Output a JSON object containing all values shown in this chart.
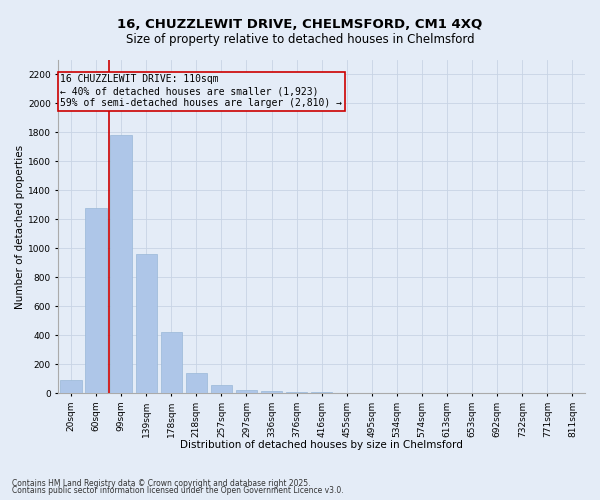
{
  "title_line1": "16, CHUZZLEWIT DRIVE, CHELMSFORD, CM1 4XQ",
  "title_line2": "Size of property relative to detached houses in Chelmsford",
  "xlabel": "Distribution of detached houses by size in Chelmsford",
  "ylabel": "Number of detached properties",
  "categories": [
    "20sqm",
    "60sqm",
    "99sqm",
    "139sqm",
    "178sqm",
    "218sqm",
    "257sqm",
    "297sqm",
    "336sqm",
    "376sqm",
    "416sqm",
    "455sqm",
    "495sqm",
    "534sqm",
    "574sqm",
    "613sqm",
    "653sqm",
    "692sqm",
    "732sqm",
    "771sqm",
    "811sqm"
  ],
  "values": [
    90,
    1280,
    1780,
    960,
    420,
    140,
    60,
    25,
    12,
    8,
    5,
    4,
    3,
    2,
    2,
    2,
    1,
    1,
    1,
    1,
    1
  ],
  "bar_color": "#aec6e8",
  "bar_edge_color": "#9ab8d8",
  "highlight_color": "#cc0000",
  "property_line_x": 1.5,
  "annotation_text": "16 CHUZZLEWIT DRIVE: 110sqm\n← 40% of detached houses are smaller (1,923)\n59% of semi-detached houses are larger (2,810) →",
  "annotation_box_color": "#cc0000",
  "ylim": [
    0,
    2300
  ],
  "yticks": [
    0,
    200,
    400,
    600,
    800,
    1000,
    1200,
    1400,
    1600,
    1800,
    2000,
    2200
  ],
  "grid_color": "#c8d4e4",
  "bg_color": "#e4ecf7",
  "footer_line1": "Contains HM Land Registry data © Crown copyright and database right 2025.",
  "footer_line2": "Contains public sector information licensed under the Open Government Licence v3.0.",
  "title_fontsize": 9.5,
  "subtitle_fontsize": 8.5,
  "axis_label_fontsize": 7.5,
  "tick_fontsize": 6.5,
  "annotation_fontsize": 7,
  "footer_fontsize": 5.5
}
